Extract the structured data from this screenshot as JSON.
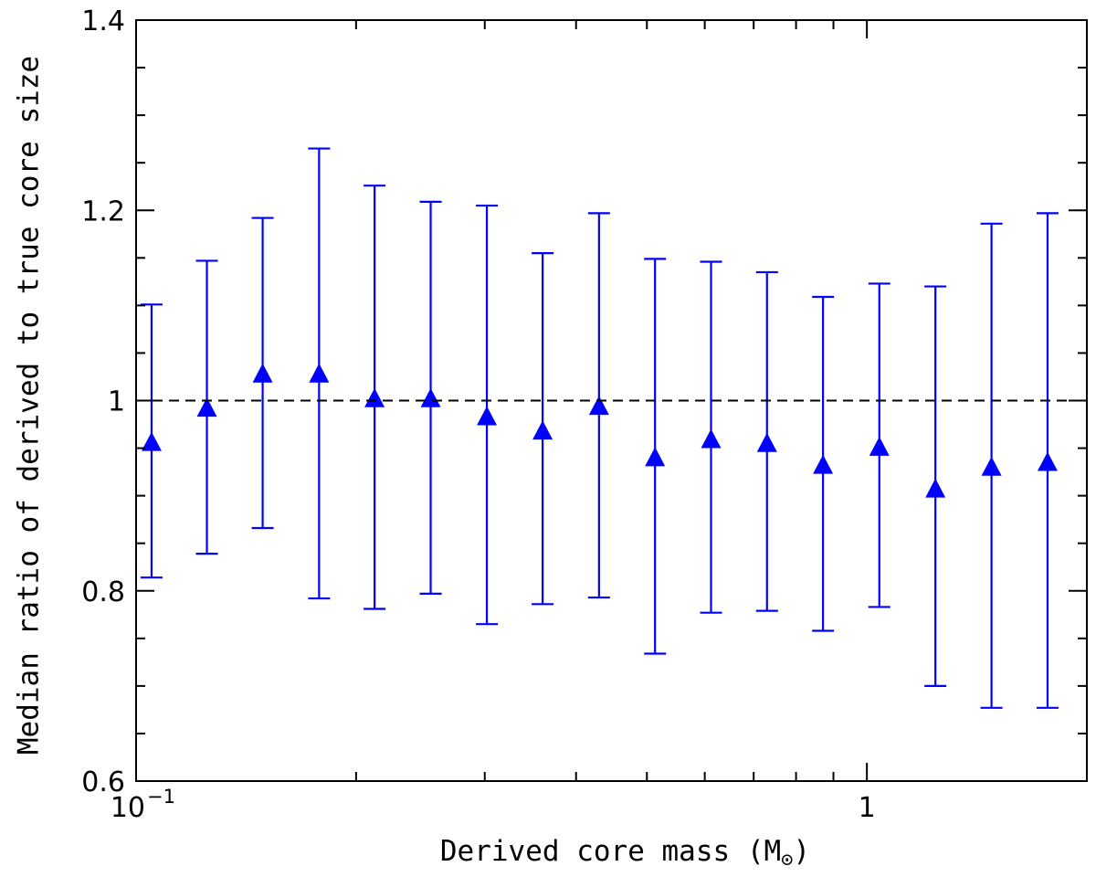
{
  "chart_data": {
    "type": "scatter",
    "xscale": "log",
    "xlim": [
      0.1,
      2.0
    ],
    "ylim": [
      0.6,
      1.4
    ],
    "xlabel": "Derived core mass (M⊙)",
    "xlabel_main": "Derived core mass (M",
    "xlabel_sub": "⊙",
    "xlabel_close": ")",
    "ylabel": "Median ratio of derived to true core size",
    "reference_line": 1.0,
    "marker_color": "#0000ff",
    "y_ticks": [
      {
        "value": 0.6,
        "label": "0.6"
      },
      {
        "value": 0.8,
        "label": "0.8"
      },
      {
        "value": 1.0,
        "label": "1"
      },
      {
        "value": 1.2,
        "label": "1.2"
      },
      {
        "value": 1.4,
        "label": "1.4"
      }
    ],
    "x_ticks": [
      {
        "value": 0.1,
        "base": "10",
        "exp": "−1"
      },
      {
        "value": 1.0,
        "base": "1",
        "exp": ""
      }
    ],
    "points": [
      {
        "x": 0.105,
        "y": 0.956,
        "ylow": 0.814,
        "yhigh": 1.101
      },
      {
        "x": 0.125,
        "y": 0.992,
        "ylow": 0.839,
        "yhigh": 1.147
      },
      {
        "x": 0.149,
        "y": 1.028,
        "ylow": 0.866,
        "yhigh": 1.192
      },
      {
        "x": 0.178,
        "y": 1.028,
        "ylow": 0.792,
        "yhigh": 1.265
      },
      {
        "x": 0.212,
        "y": 1.002,
        "ylow": 0.781,
        "yhigh": 1.226
      },
      {
        "x": 0.253,
        "y": 1.002,
        "ylow": 0.797,
        "yhigh": 1.209
      },
      {
        "x": 0.302,
        "y": 0.983,
        "ylow": 0.765,
        "yhigh": 1.205
      },
      {
        "x": 0.36,
        "y": 0.968,
        "ylow": 0.786,
        "yhigh": 1.155
      },
      {
        "x": 0.43,
        "y": 0.994,
        "ylow": 0.793,
        "yhigh": 1.197
      },
      {
        "x": 0.513,
        "y": 0.94,
        "ylow": 0.734,
        "yhigh": 1.149
      },
      {
        "x": 0.612,
        "y": 0.959,
        "ylow": 0.777,
        "yhigh": 1.146
      },
      {
        "x": 0.73,
        "y": 0.955,
        "ylow": 0.779,
        "yhigh": 1.135
      },
      {
        "x": 0.871,
        "y": 0.932,
        "ylow": 0.758,
        "yhigh": 1.109
      },
      {
        "x": 1.04,
        "y": 0.951,
        "ylow": 0.783,
        "yhigh": 1.123
      },
      {
        "x": 1.241,
        "y": 0.907,
        "ylow": 0.7,
        "yhigh": 1.12
      },
      {
        "x": 1.481,
        "y": 0.93,
        "ylow": 0.677,
        "yhigh": 1.186
      },
      {
        "x": 1.767,
        "y": 0.935,
        "ylow": 0.677,
        "yhigh": 1.197
      }
    ]
  }
}
